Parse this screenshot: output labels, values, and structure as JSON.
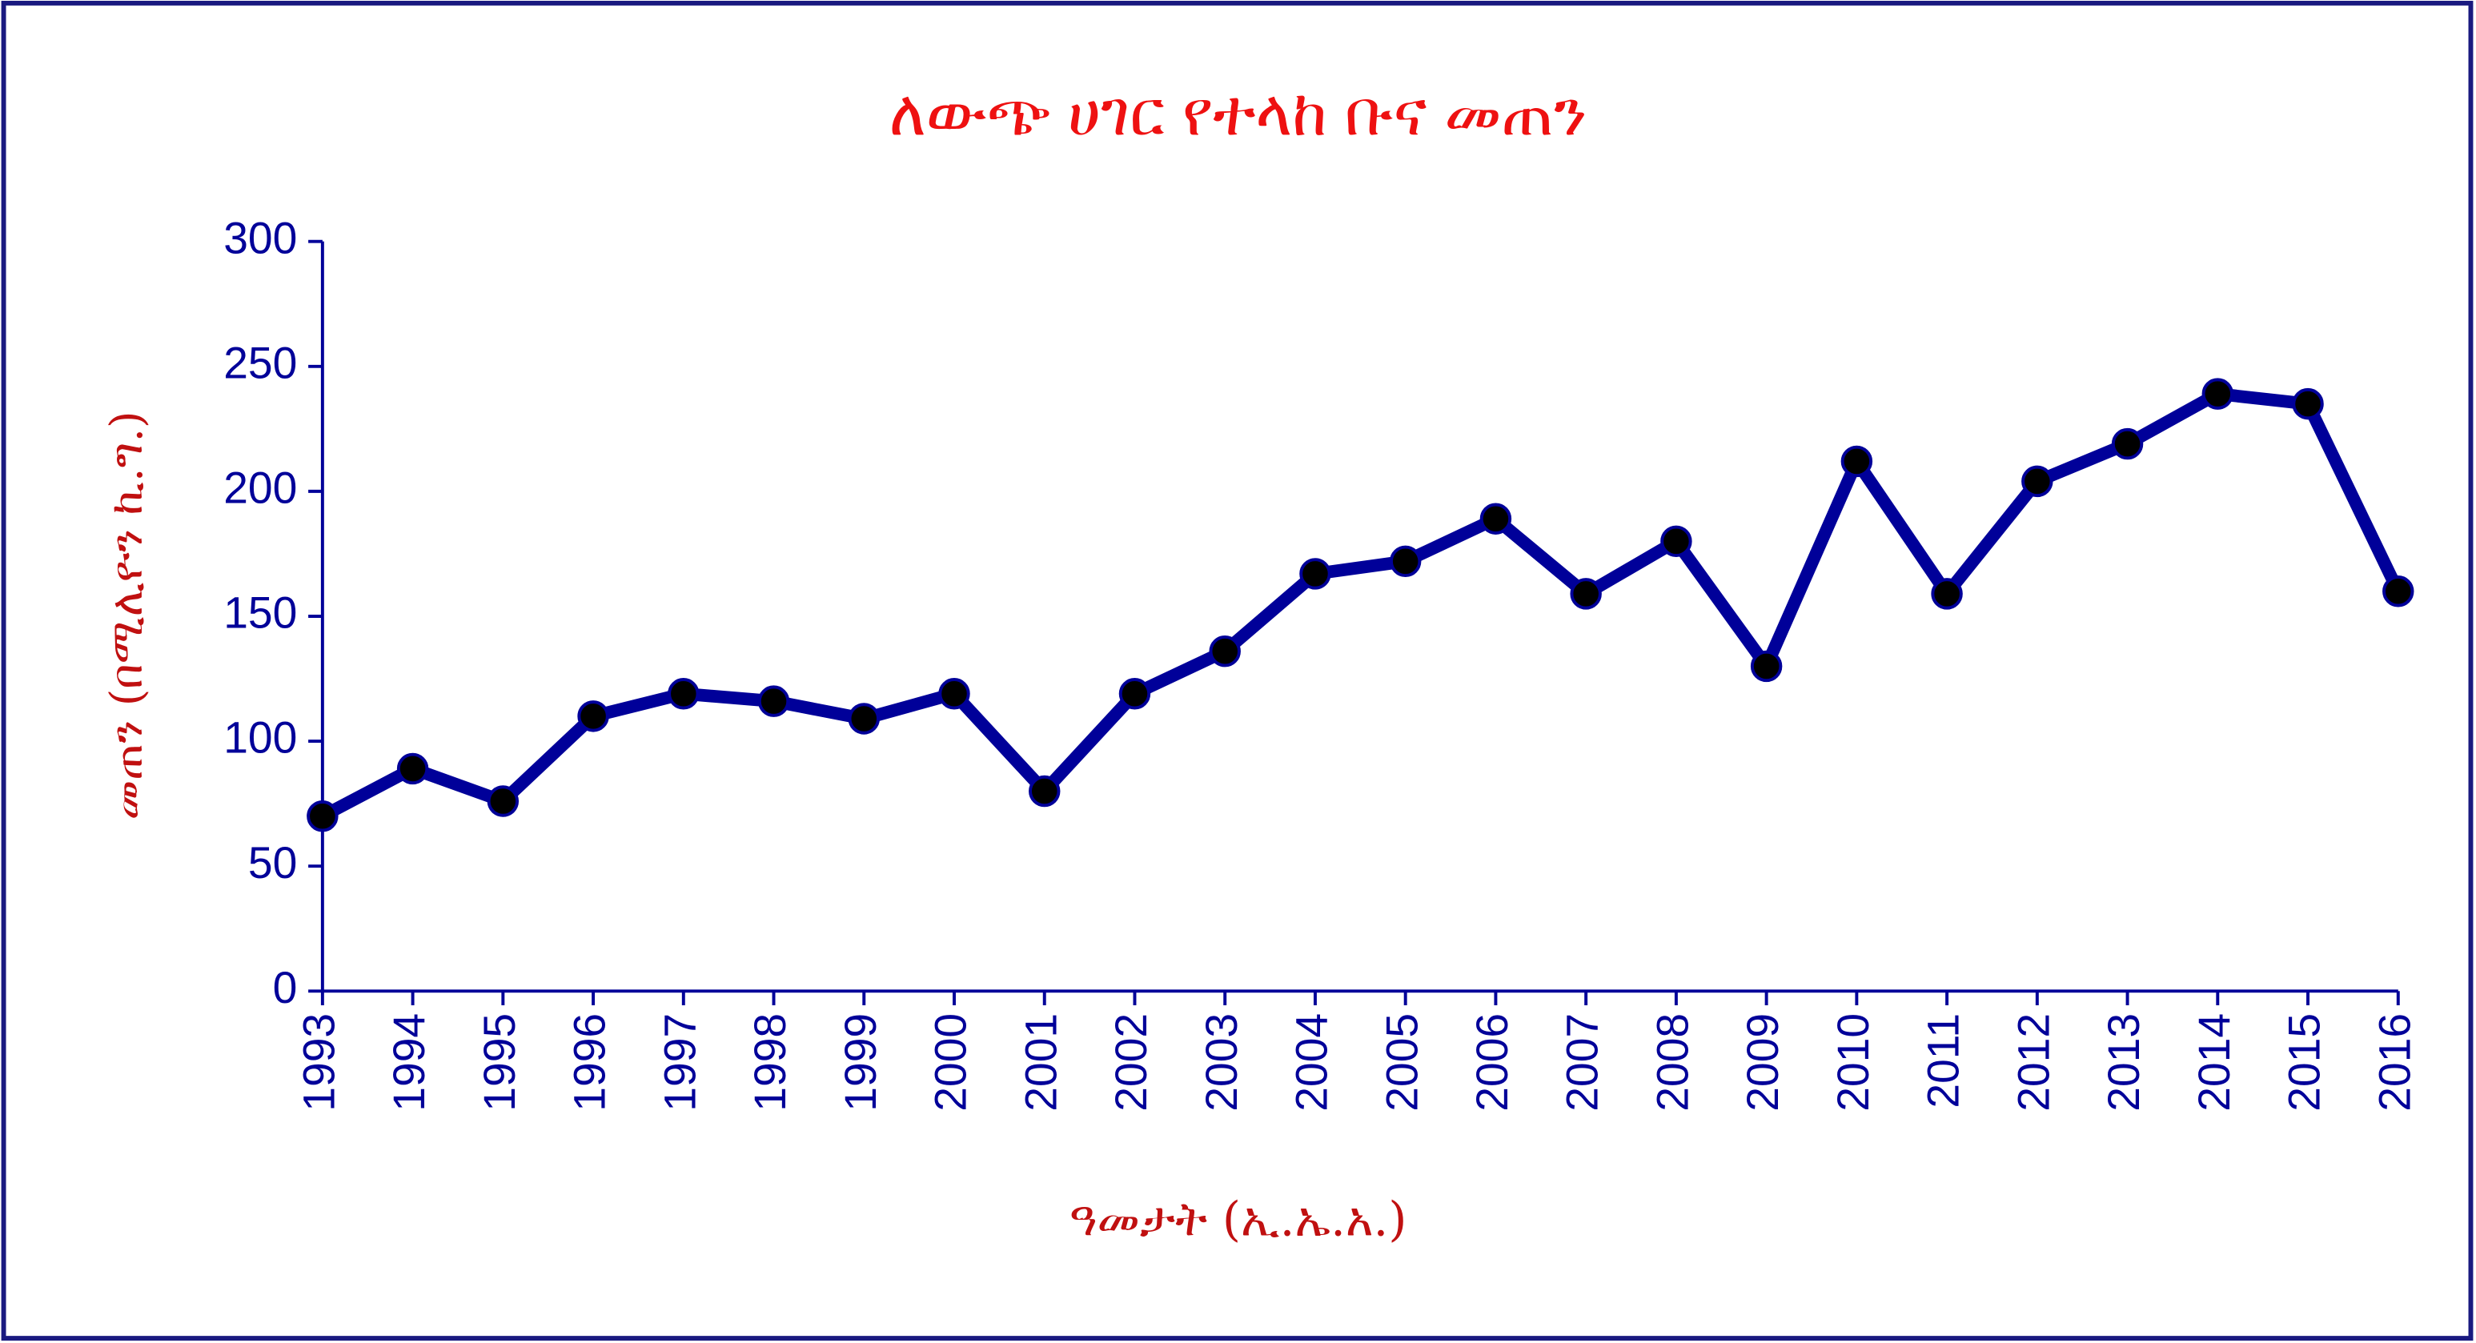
{
  "chart_data": {
    "type": "line",
    "title": "ለውጭ ሀገር የተላከ ቡና መጠን",
    "x_label": "ዓመታት (ኢ.ኤ.አ.)",
    "y_label": "መጠን (በሚሊዮን ኪ.ግ.)",
    "categories": [
      "1993",
      "1994",
      "1995",
      "1996",
      "1997",
      "1998",
      "1999",
      "2000",
      "2001",
      "2002",
      "2003",
      "2004",
      "2005",
      "2006",
      "2007",
      "2008",
      "2009",
      "2010",
      "2011",
      "2012",
      "2013",
      "2014",
      "2015",
      "2016"
    ],
    "series": [
      {
        "color": "#000099",
        "marker_color": "#000000",
        "values": [
          70,
          89,
          76,
          110,
          119,
          116,
          109,
          119,
          80,
          119,
          136,
          167,
          172,
          189,
          159,
          180,
          130,
          212,
          159,
          204,
          219,
          239,
          235,
          160
        ]
      }
    ],
    "ylim": [
      0,
      300
    ],
    "yticks": [
      0,
      50,
      100,
      150,
      200,
      250,
      300
    ],
    "grid": false
  }
}
